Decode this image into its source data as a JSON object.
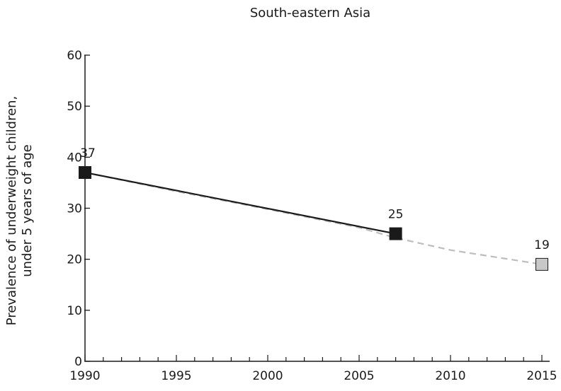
{
  "chart_data": {
    "type": "line",
    "title": "South-eastern Asia",
    "xlabel": "",
    "ylabel_lines": [
      "Prevalence of underweight children,",
      "under 5 years of age"
    ],
    "xlim": [
      1990,
      2015
    ],
    "ylim": [
      0,
      60
    ],
    "x_ticks": [
      1990,
      1995,
      2000,
      2005,
      2010,
      2015
    ],
    "x_tick_labels": [
      "1990",
      "1995",
      "2000",
      "2005",
      "2010",
      "2015"
    ],
    "y_ticks": [
      0,
      10,
      20,
      30,
      40,
      50,
      60
    ],
    "y_tick_labels": [
      "0",
      "10",
      "20",
      "30",
      "40",
      "50",
      "60"
    ],
    "x_minor_tick_step": 1,
    "grid": false,
    "legend": "none",
    "series": [
      {
        "style": "solid",
        "color": "#1a1a1a",
        "x": [
          1990,
          2007
        ],
        "y": [
          37,
          25
        ]
      },
      {
        "style": "dashed",
        "color": "#bdbdbd",
        "x": [
          1990,
          1995,
          2000,
          2005,
          2007,
          2010,
          2015
        ],
        "y": [
          37,
          33.3,
          29.8,
          26.2,
          24.2,
          21.8,
          19
        ]
      }
    ],
    "points": [
      {
        "x": 1990,
        "y": 37,
        "label": "37",
        "fill": "#1a1a1a"
      },
      {
        "x": 2007,
        "y": 25,
        "label": "25",
        "fill": "#1a1a1a"
      },
      {
        "x": 2015,
        "y": 19,
        "label": "19",
        "fill": "#c8c8c8"
      }
    ]
  }
}
